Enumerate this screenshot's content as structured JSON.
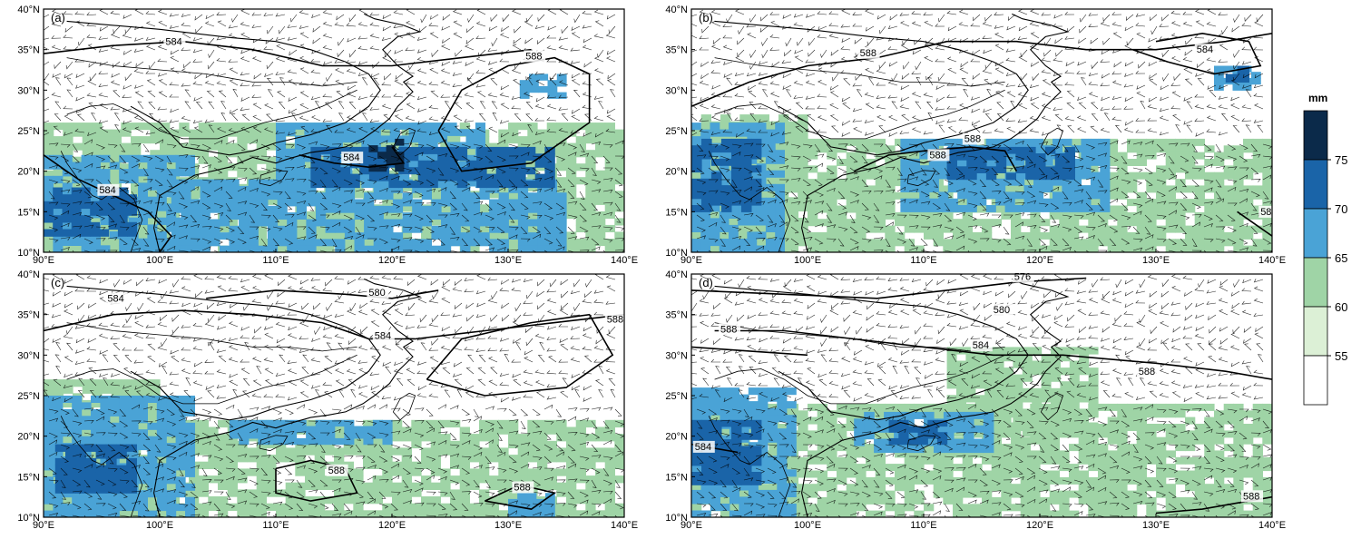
{
  "units": "mm",
  "colorbar": {
    "levels": [
      "75",
      "70",
      "65",
      "60",
      "55"
    ],
    "colors": [
      "#0b2a4a",
      "#1a64a8",
      "#4aa3d6",
      "#9fd4a6",
      "#dcf0d6",
      "#ffffff"
    ]
  },
  "axes": {
    "lat_labels": [
      "10°N",
      "15°N",
      "20°N",
      "25°N",
      "30°N",
      "35°N",
      "40°N"
    ],
    "lon_labels": [
      "90°E",
      "100°E",
      "110°E",
      "120°E",
      "130°E",
      "140°E"
    ],
    "lat_range": [
      10,
      40
    ],
    "lon_range": [
      90,
      140
    ]
  },
  "panels": [
    {
      "label": "(a)",
      "contour_labels": [
        {
          "text": "584",
          "lon": 100.5,
          "lat": 35.6
        },
        {
          "text": "588",
          "lon": 131.5,
          "lat": 33.8
        },
        {
          "text": "584",
          "lon": 115.8,
          "lat": 21.3
        },
        {
          "text": "584",
          "lon": 94.8,
          "lat": 17.3
        }
      ],
      "shading": [
        {
          "level": 1,
          "lon": [
            90,
            140
          ],
          "lat": [
            10,
            26
          ]
        },
        {
          "level": 2,
          "lon": [
            90,
            103
          ],
          "lat": [
            10,
            22
          ]
        },
        {
          "level": 2,
          "lon": [
            101,
            135
          ],
          "lat": [
            10,
            19
          ]
        },
        {
          "level": 2,
          "lon": [
            110,
            128
          ],
          "lat": [
            18,
            26
          ]
        },
        {
          "level": 3,
          "lon": [
            90,
            98
          ],
          "lat": [
            12,
            18
          ]
        },
        {
          "level": 3,
          "lon": [
            113,
            134
          ],
          "lat": [
            18,
            23
          ]
        },
        {
          "level": 4,
          "lon": [
            118,
            121
          ],
          "lat": [
            20,
            24
          ]
        },
        {
          "level": 2,
          "lon": [
            131,
            135
          ],
          "lat": [
            29,
            32
          ]
        }
      ]
    },
    {
      "label": "(b)",
      "contour_labels": [
        {
          "text": "588",
          "lon": 104.5,
          "lat": 34.2
        },
        {
          "text": "584",
          "lon": 133.5,
          "lat": 34.6
        },
        {
          "text": "588",
          "lon": 110.5,
          "lat": 21.6
        },
        {
          "text": "588",
          "lon": 113.5,
          "lat": 23.6
        },
        {
          "text": "58",
          "lon": 139.0,
          "lat": 14.6
        }
      ],
      "shading": [
        {
          "level": 1,
          "lon": [
            90,
            140
          ],
          "lat": [
            10,
            24
          ]
        },
        {
          "level": 1,
          "lon": [
            90,
            100
          ],
          "lat": [
            10,
            27
          ]
        },
        {
          "level": 2,
          "lon": [
            90,
            98
          ],
          "lat": [
            10,
            26
          ]
        },
        {
          "level": 2,
          "lon": [
            108,
            126
          ],
          "lat": [
            15,
            24
          ]
        },
        {
          "level": 3,
          "lon": [
            90,
            96
          ],
          "lat": [
            15,
            24
          ]
        },
        {
          "level": 3,
          "lon": [
            112,
            123
          ],
          "lat": [
            19,
            23
          ]
        },
        {
          "level": 2,
          "lon": [
            135,
            139
          ],
          "lat": [
            30,
            33
          ]
        },
        {
          "level": 3,
          "lon": [
            136,
            138
          ],
          "lat": [
            31,
            33
          ]
        }
      ]
    },
    {
      "label": "(c)",
      "contour_labels": [
        {
          "text": "584",
          "lon": 95.5,
          "lat": 36.6
        },
        {
          "text": "580",
          "lon": 118.0,
          "lat": 37.3
        },
        {
          "text": "584",
          "lon": 118.5,
          "lat": 32.0
        },
        {
          "text": "588",
          "lon": 138.5,
          "lat": 34.0
        },
        {
          "text": "588",
          "lon": 114.5,
          "lat": 15.4
        },
        {
          "text": "588",
          "lon": 130.5,
          "lat": 13.3
        }
      ],
      "shading": [
        {
          "level": 1,
          "lon": [
            90,
            140
          ],
          "lat": [
            10,
            22
          ]
        },
        {
          "level": 1,
          "lon": [
            90,
            100
          ],
          "lat": [
            10,
            27
          ]
        },
        {
          "level": 2,
          "lon": [
            90,
            103
          ],
          "lat": [
            10,
            25
          ]
        },
        {
          "level": 2,
          "lon": [
            106,
            120
          ],
          "lat": [
            19,
            22
          ]
        },
        {
          "level": 3,
          "lon": [
            91,
            98
          ],
          "lat": [
            13,
            19
          ]
        },
        {
          "level": 2,
          "lon": [
            130,
            134
          ],
          "lat": [
            10,
            13
          ]
        }
      ]
    },
    {
      "label": "(d)",
      "contour_labels": [
        {
          "text": "576",
          "lon": 117.8,
          "lat": 39.3
        },
        {
          "text": "580",
          "lon": 116.0,
          "lat": 35.2
        },
        {
          "text": "588",
          "lon": 92.5,
          "lat": 32.8
        },
        {
          "text": "584",
          "lon": 114.2,
          "lat": 30.8
        },
        {
          "text": "588",
          "lon": 128.5,
          "lat": 27.6
        },
        {
          "text": "584",
          "lon": 90.3,
          "lat": 18.3
        },
        {
          "text": "588",
          "lon": 137.5,
          "lat": 12.2
        }
      ],
      "shading": [
        {
          "level": 1,
          "lon": [
            90,
            140
          ],
          "lat": [
            10,
            24
          ]
        },
        {
          "level": 1,
          "lon": [
            112,
            125
          ],
          "lat": [
            20,
            31
          ]
        },
        {
          "level": 2,
          "lon": [
            90,
            99
          ],
          "lat": [
            10,
            26
          ]
        },
        {
          "level": 2,
          "lon": [
            104,
            116
          ],
          "lat": [
            18,
            23
          ]
        },
        {
          "level": 3,
          "lon": [
            90,
            96
          ],
          "lat": [
            14,
            22
          ]
        },
        {
          "level": 3,
          "lon": [
            107,
            112
          ],
          "lat": [
            19,
            22
          ]
        }
      ]
    }
  ]
}
